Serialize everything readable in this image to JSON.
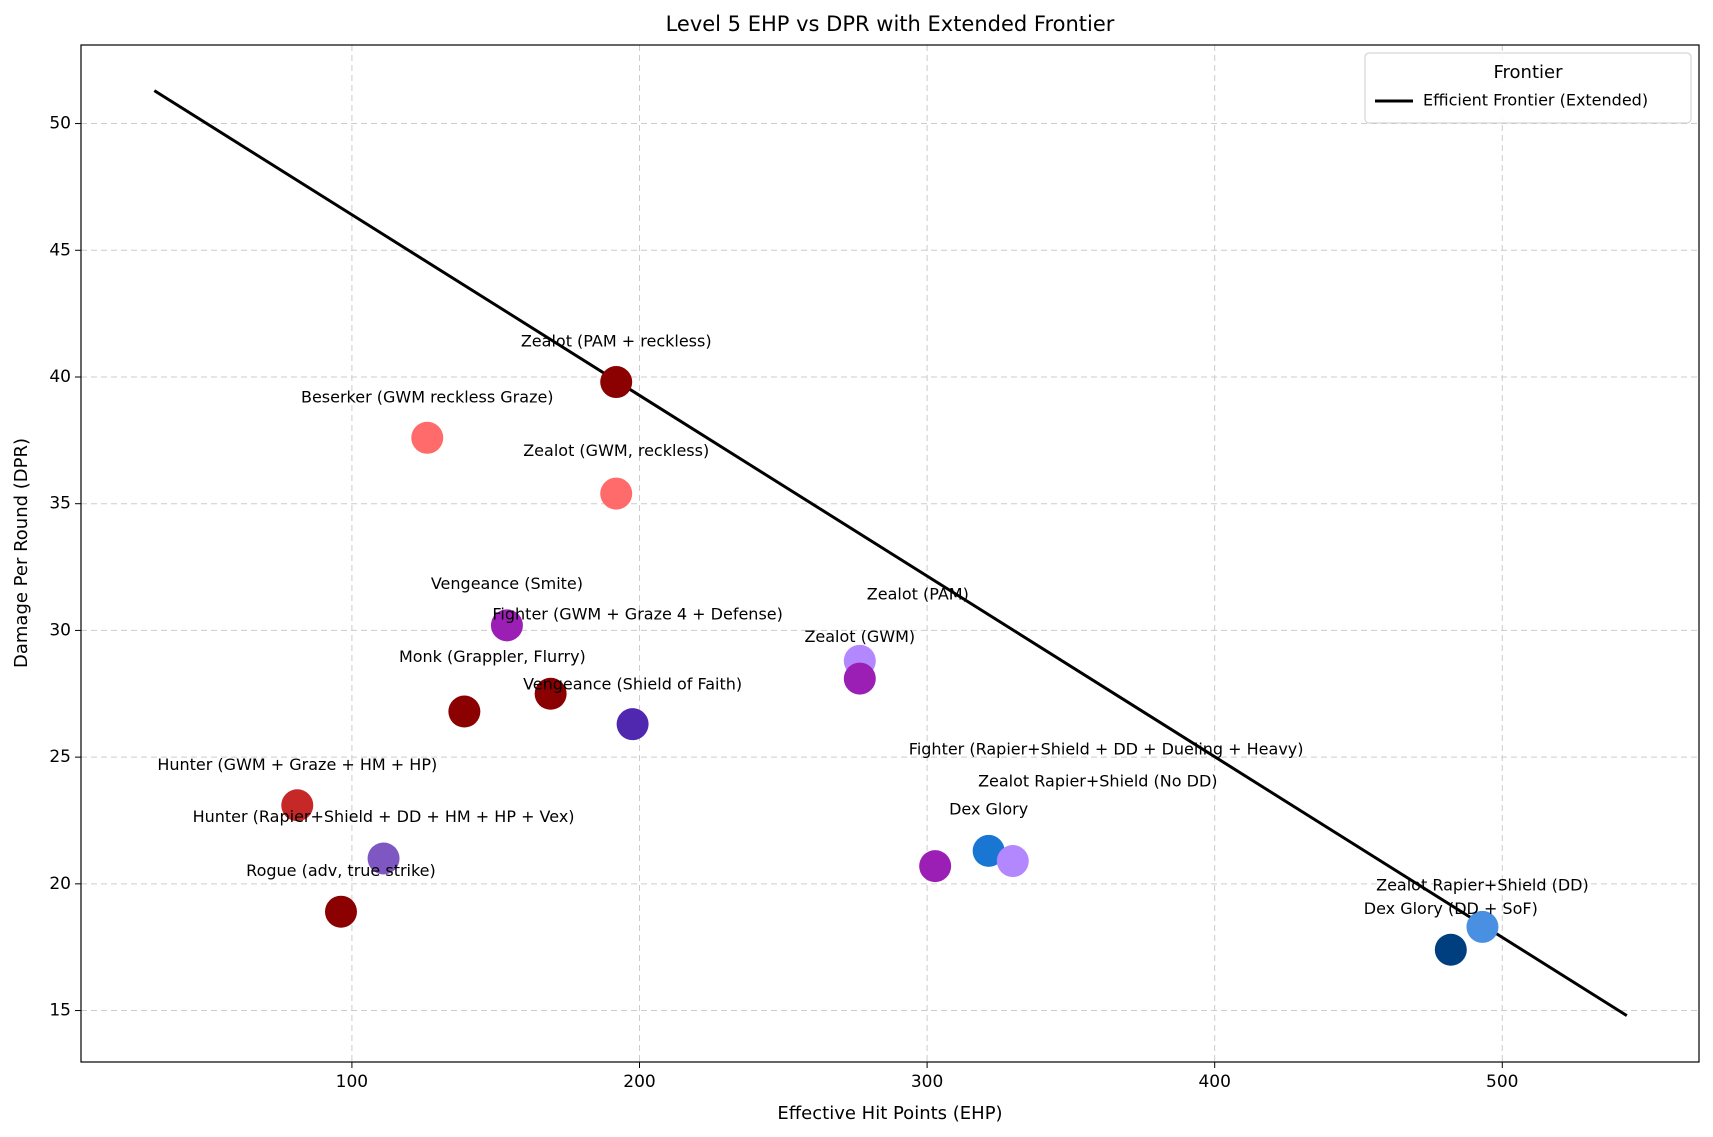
{
  "chart_data": {
    "type": "scatter",
    "title": "Level 5 EHP vs DPR with Extended Frontier",
    "x_label": "Effective Hit Points (EHP)",
    "y_label": "Damage Per Round (DPR)",
    "xlim": [
      5.8,
      568.4
    ],
    "ylim": [
      12.97,
      53.1
    ],
    "xticks": [
      100,
      200,
      300,
      400,
      500
    ],
    "yticks": [
      15,
      20,
      25,
      30,
      35,
      40,
      45,
      50
    ],
    "grid": true,
    "points": [
      {
        "label": "Zealot (PAM + reckless)",
        "x": 191.9,
        "y": 39.8,
        "color": "#8b0000"
      },
      {
        "label": "Beserker (GWM reckless Graze)",
        "x": 126.2,
        "y": 37.6,
        "color": "#ff6b6b"
      },
      {
        "label": "Zealot (GWM, reckless)",
        "x": 191.9,
        "y": 35.4,
        "color": "#ff6b6b"
      },
      {
        "label": "Vengeance (Smite)",
        "x": 153.9,
        "y": 30.2,
        "color": "#9c1fb5"
      },
      {
        "label": "Fighter (GWM + Graze 4 + Defense)",
        "x": 169.1,
        "y": 27.5,
        "color": "#8b0000"
      },
      {
        "label": "Monk (Grappler, Flurry)",
        "x": 139.1,
        "y": 26.8,
        "color": "#8b0000"
      },
      {
        "label": "Vengeance (Shield of Faith)",
        "x": 197.6,
        "y": 26.3,
        "color": "#5028b0"
      },
      {
        "label": "Zealot (PAM)",
        "x": 276.6,
        "y": 28.8,
        "color": "#b388ff"
      },
      {
        "label": "Zealot (GWM)",
        "x": 276.6,
        "y": 28.1,
        "color": "#9c1fb5"
      },
      {
        "label": "Hunter (GWM + Graze + HM + HP)",
        "x": 81.0,
        "y": 23.1,
        "color": "#c62828"
      },
      {
        "label": "Hunter (Rapier+Shield + DD + HM + HP + Vex)",
        "x": 111.0,
        "y": 21.0,
        "color": "#7e57c2"
      },
      {
        "label": "Rogue (adv, true strike)",
        "x": 96.2,
        "y": 18.9,
        "color": "#8b0000"
      },
      {
        "label": "Fighter (Rapier+Shield + DD + Dueling + Heavy)",
        "x": 302.8,
        "y": 20.7,
        "color": "#9c1fb5"
      },
      {
        "label": "Dex Glory",
        "x": 321.4,
        "y": 21.3,
        "color": "#1976d2"
      },
      {
        "label": "Zealot Rapier+Shield (No DD)",
        "x": 329.8,
        "y": 20.9,
        "color": "#b388ff"
      },
      {
        "label": "Zealot Rapier+Shield (DD)",
        "x": 493.1,
        "y": 18.3,
        "color": "#4a90e2"
      },
      {
        "label": "Dex Glory (DD + SoF)",
        "x": 482.1,
        "y": 17.4,
        "color": "#003f7f"
      }
    ],
    "frontier": {
      "name": "Efficient Frontier (Extended)",
      "x": [
        31.3,
        543.3
      ],
      "y": [
        51.3,
        14.8
      ],
      "color": "#000000"
    },
    "legend": {
      "title": "Frontier",
      "position": "upper right"
    }
  }
}
